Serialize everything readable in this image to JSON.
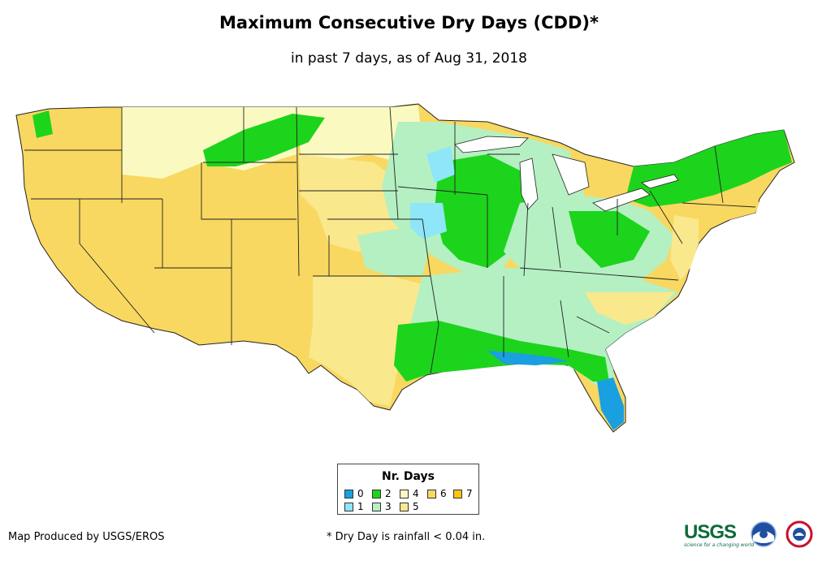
{
  "map": {
    "title": "Maximum Consecutive Dry Days (CDD)*",
    "subtitle": "in past 7 days, as of Aug 31, 2018",
    "legend": {
      "title": "Nr. Days",
      "items": [
        {
          "label": "0",
          "color": "#1a9fe0"
        },
        {
          "label": "1",
          "color": "#8ee6f8"
        },
        {
          "label": "2",
          "color": "#1cd41c"
        },
        {
          "label": "3",
          "color": "#b5f0c2"
        },
        {
          "label": "4",
          "color": "#fafac0"
        },
        {
          "label": "5",
          "color": "#fae88c"
        },
        {
          "label": "6",
          "color": "#f8d860"
        },
        {
          "label": "7",
          "color": "#f8c418"
        }
      ]
    },
    "region_colors": {
      "dry6": "#f8d860",
      "dry5": "#fae88c",
      "dry4": "#fafac0",
      "dry3": "#b5f0c2",
      "dry2": "#1cd41c",
      "dry1": "#8ee6f8",
      "dry0": "#1a9fe0",
      "border": "#222222"
    }
  },
  "footer": {
    "producer": "Map Produced by USGS/EROS",
    "note": "* Dry Day is rainfall < 0.04 in.",
    "logo_usgs": "USGS",
    "logo_usgs_tagline": "science for a changing world",
    "logo_noaa": "noaa-logo",
    "logo_nws": "nws-logo"
  }
}
